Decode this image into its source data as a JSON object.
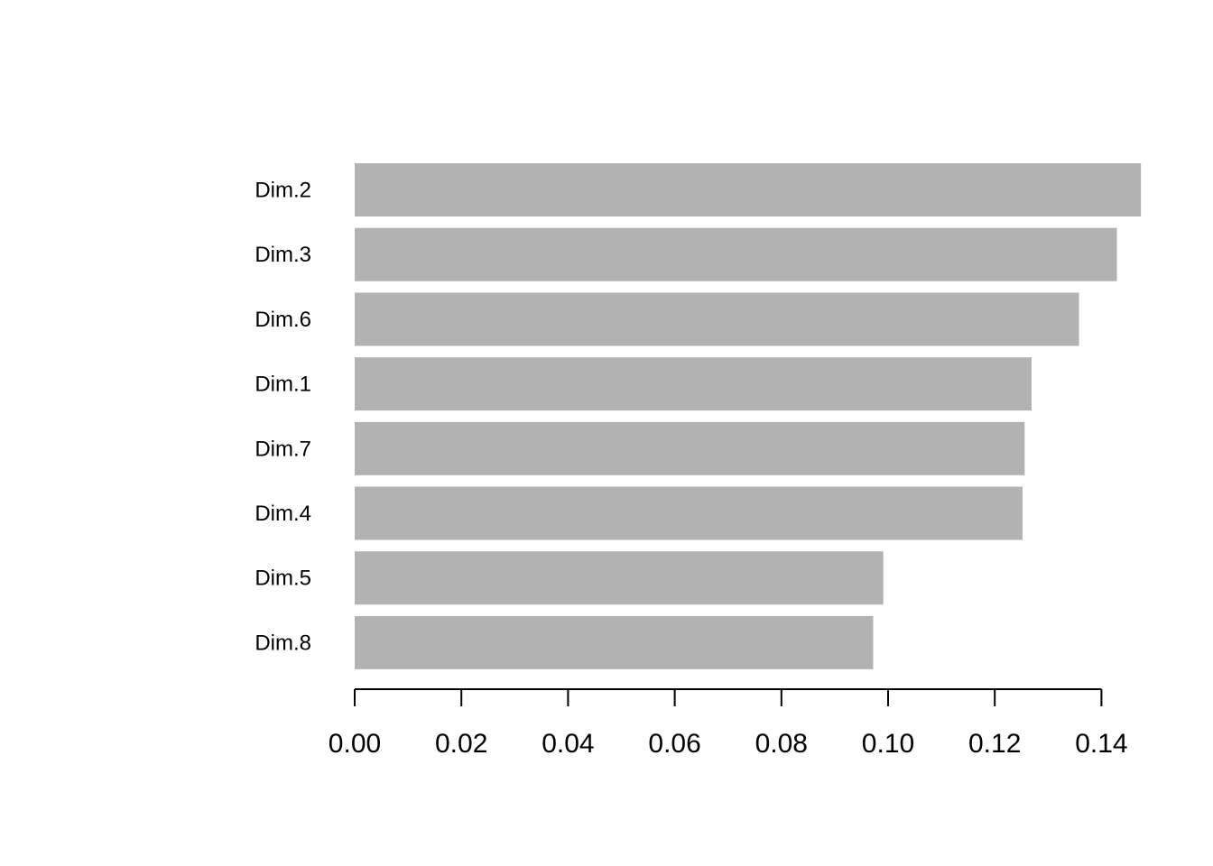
{
  "chart_data": {
    "type": "bar",
    "orientation": "horizontal",
    "title": "",
    "xlabel": "",
    "ylabel": "",
    "categories": [
      "Dim.2",
      "Dim.3",
      "Dim.6",
      "Dim.1",
      "Dim.7",
      "Dim.4",
      "Dim.5",
      "Dim.8"
    ],
    "values": [
      0.1474,
      0.1429,
      0.1358,
      0.1269,
      0.1256,
      0.1252,
      0.0991,
      0.0972
    ],
    "xticks": [
      "0.00",
      "0.02",
      "0.04",
      "0.06",
      "0.08",
      "0.10",
      "0.12",
      "0.14"
    ],
    "xtick_values": [
      0,
      0.02,
      0.04,
      0.06,
      0.08,
      0.1,
      0.12,
      0.14
    ],
    "xlim": [
      0,
      0.1474
    ],
    "grid": false,
    "legend": "none",
    "bar_color": "#b2b2b2"
  }
}
